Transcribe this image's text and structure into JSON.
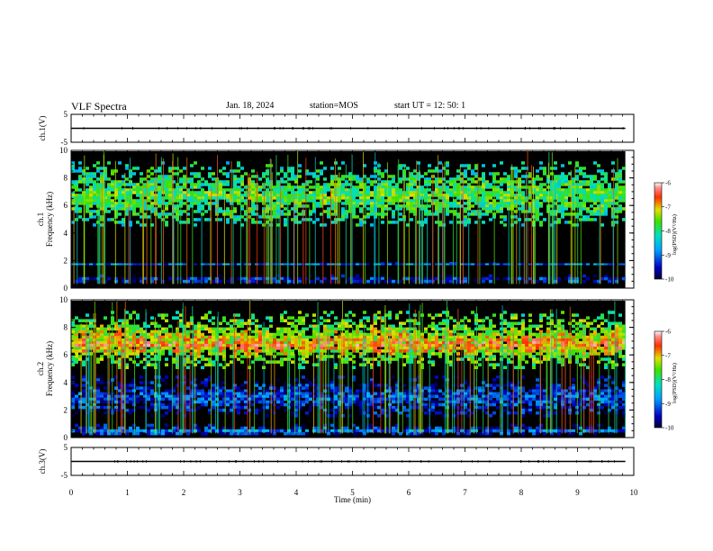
{
  "header": {
    "title": "VLF Spectra",
    "date": "Jan. 18, 2024",
    "station": "station=MOS",
    "start_ut": "start UT =   12: 50: 1"
  },
  "chart_data": [
    {
      "type": "line",
      "panel": "ch1-voltage",
      "ylabel": "ch.1(V)",
      "yticks": [
        "5",
        "-5"
      ],
      "ylim": [
        -5,
        5
      ],
      "xlim": [
        0,
        10
      ],
      "x": [
        0,
        9.85
      ],
      "y": [
        0,
        0
      ]
    },
    {
      "type": "heatmap",
      "panel": "ch1-spectrogram",
      "ylabel": "ch.1\nFrequency (kHz)",
      "yticks": [
        "0",
        "2",
        "4",
        "6",
        "8",
        "10"
      ],
      "ylim": [
        0,
        10
      ],
      "xlim": [
        0,
        10
      ],
      "data_extent_x": [
        0,
        9.85
      ],
      "colorbar": {
        "label": "log(PSD)(V²/Hz)",
        "ticks": [
          "-6",
          "-7",
          "-8",
          "-9",
          "-10"
        ],
        "range": [
          -10,
          -6
        ]
      },
      "bands": [
        {
          "f_low": 4.5,
          "f_high": 9.2,
          "level": -7.6
        },
        {
          "f_low": 1.7,
          "f_high": 1.9,
          "level": -9.0
        },
        {
          "f_low": 0.4,
          "f_high": 1.0,
          "level": -9.2
        }
      ]
    },
    {
      "type": "heatmap",
      "panel": "ch2-spectrogram",
      "ylabel": "ch.2\nFrequency (kHz)",
      "yticks": [
        "0",
        "2",
        "4",
        "6",
        "8",
        "10"
      ],
      "ylim": [
        0,
        10
      ],
      "xlim": [
        0,
        10
      ],
      "data_extent_x": [
        0,
        9.85
      ],
      "colorbar": {
        "label": "log(PSD)(V²/Hz)",
        "ticks": [
          "-6",
          "-7",
          "-8",
          "-9",
          "-10"
        ],
        "range": [
          -10,
          -6
        ]
      },
      "bands": [
        {
          "f_low": 5.0,
          "f_high": 9.2,
          "level": -7.2
        },
        {
          "f_low": 6.0,
          "f_high": 7.8,
          "level": -6.6
        },
        {
          "f_low": 1.5,
          "f_high": 4.5,
          "level": -9.1
        },
        {
          "f_low": 0.2,
          "f_high": 1.0,
          "level": -9.0
        }
      ]
    },
    {
      "type": "line",
      "panel": "ch3-voltage",
      "ylabel": "ch.3(V)",
      "yticks": [
        "5",
        "-5"
      ],
      "ylim": [
        -5,
        5
      ],
      "xlim": [
        0,
        10
      ],
      "x": [
        0,
        9.85
      ],
      "y": [
        0,
        0
      ]
    }
  ],
  "x_axis": {
    "label": "Time (min)",
    "ticks": [
      "0",
      "1",
      "2",
      "3",
      "4",
      "5",
      "6",
      "7",
      "8",
      "9",
      "10"
    ]
  }
}
